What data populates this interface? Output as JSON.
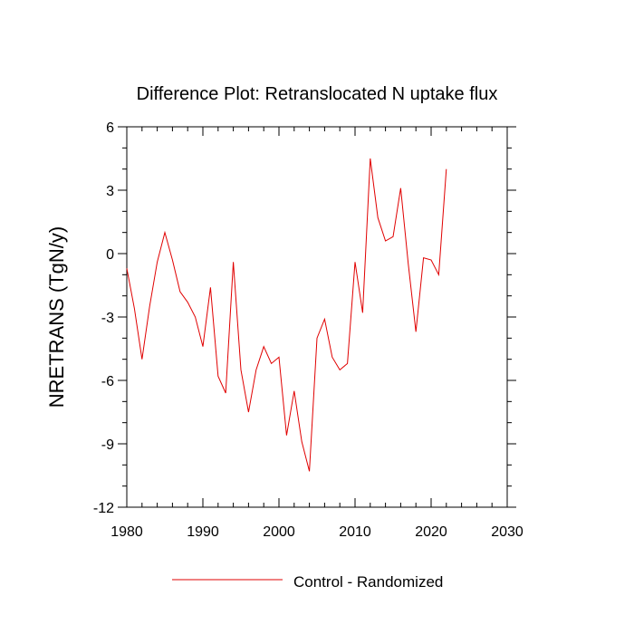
{
  "chart_data": {
    "type": "line",
    "title": "Difference Plot: Retranslocated N uptake flux",
    "xlabel": "",
    "ylabel": "NRETRANS  (TgN/y)",
    "xlim": [
      1980,
      2030
    ],
    "ylim": [
      -12,
      6
    ],
    "xticks": [
      1980,
      1990,
      2000,
      2010,
      2020,
      2030
    ],
    "yticks": [
      -12,
      -9,
      -6,
      -3,
      0,
      3,
      6
    ],
    "grid": false,
    "legend_position": "bottom-center",
    "series": [
      {
        "name": "Control - Randomized",
        "color": "#e00000",
        "x": [
          1980,
          1981,
          1982,
          1983,
          1984,
          1985,
          1986,
          1987,
          1988,
          1989,
          1990,
          1991,
          1992,
          1993,
          1994,
          1995,
          1996,
          1997,
          1998,
          1999,
          2000,
          2001,
          2002,
          2003,
          2004,
          2005,
          2006,
          2007,
          2008,
          2009,
          2010,
          2011,
          2012,
          2013,
          2014,
          2015,
          2016,
          2017,
          2018,
          2019,
          2020,
          2021,
          2022
        ],
        "y": [
          -0.7,
          -2.6,
          -5.0,
          -2.5,
          -0.4,
          1.0,
          -0.3,
          -1.8,
          -2.3,
          -3.0,
          -4.4,
          -1.6,
          -5.8,
          -6.6,
          -0.4,
          -5.5,
          -7.5,
          -5.5,
          -4.4,
          -5.2,
          -4.9,
          -8.6,
          -6.5,
          -8.9,
          -10.3,
          -4.0,
          -3.1,
          -4.9,
          -5.5,
          -5.2,
          -0.4,
          -2.8,
          4.5,
          1.7,
          0.6,
          0.8,
          3.1,
          -0.5,
          -3.7,
          -0.2,
          -0.3,
          -1.0,
          4.0
        ]
      }
    ]
  }
}
